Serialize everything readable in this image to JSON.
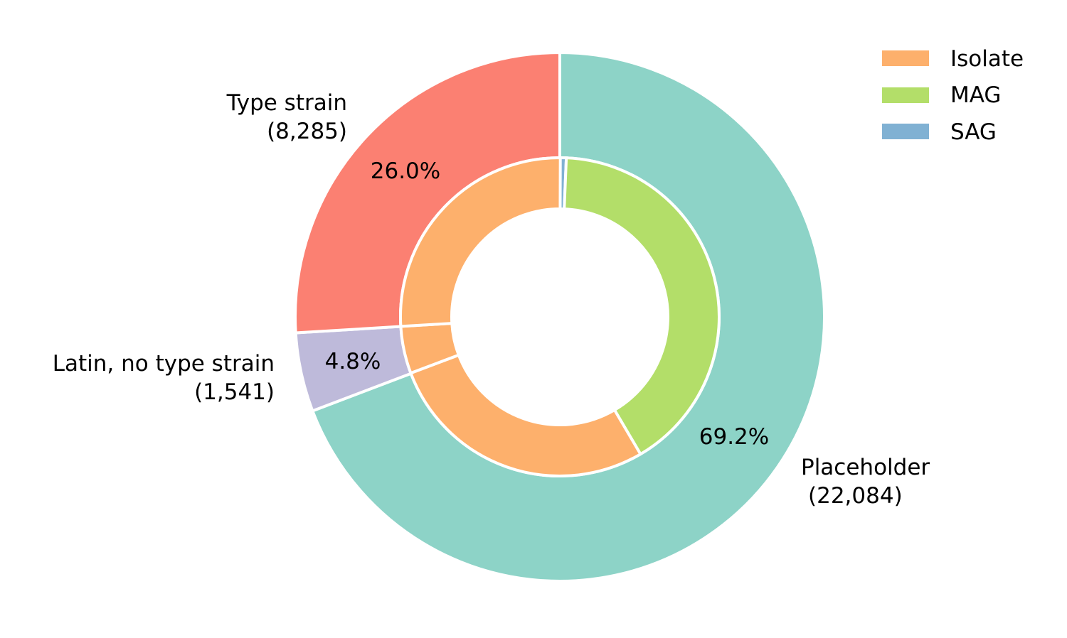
{
  "chart_data": {
    "type": "pie",
    "variant": "nested-donut",
    "outer": {
      "name": "",
      "slices": [
        {
          "label": "Placeholder",
          "count": "(22,084)",
          "value": 22084,
          "pct_label": "69.2%",
          "color": "#8dd3c7"
        },
        {
          "label": "Latin, no type strain",
          "count": "(1,541)",
          "value": 1541,
          "pct_label": "4.8%",
          "color": "#bebada"
        },
        {
          "label": "Type strain",
          "count": "(8,285)",
          "value": 8285,
          "pct_label": "26.0%",
          "color": "#fb8072"
        }
      ]
    },
    "inner": {
      "slices": [
        {
          "parent": "Placeholder",
          "category": "SAG",
          "fraction": 0.0065
        },
        {
          "parent": "Placeholder",
          "category": "MAG",
          "fraction": 0.409
        },
        {
          "parent": "Placeholder",
          "category": "Isolate",
          "fraction": 0.277
        },
        {
          "parent": "Latin, no type strain",
          "category": "Isolate",
          "fraction": 0.048
        },
        {
          "parent": "Type strain",
          "category": "Isolate",
          "fraction": 0.26
        }
      ]
    },
    "legend": {
      "placement": "top-right",
      "entries": [
        {
          "label": "Isolate",
          "color": "#fdb06c"
        },
        {
          "label": "MAG",
          "color": "#b3de69"
        },
        {
          "label": "SAG",
          "color": "#80b1d3"
        }
      ]
    },
    "start": "top",
    "direction": "clockwise"
  }
}
